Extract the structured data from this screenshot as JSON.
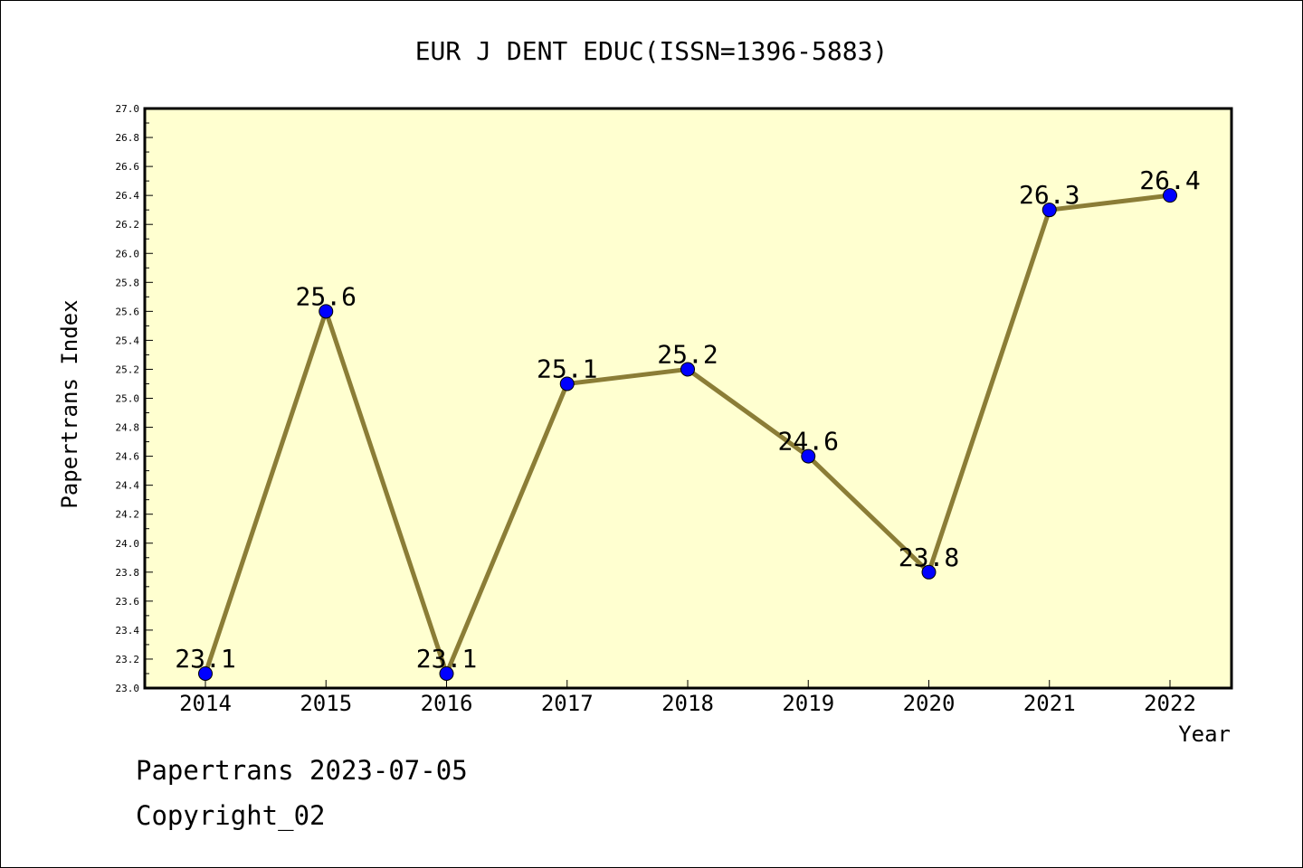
{
  "chart_data": {
    "type": "line",
    "title": "EUR J DENT EDUC(ISSN=1396-5883)",
    "xlabel": "Year",
    "ylabel": "Papertrans Index",
    "categories": [
      "2014",
      "2015",
      "2016",
      "2017",
      "2018",
      "2019",
      "2020",
      "2021",
      "2022"
    ],
    "series": [
      {
        "values": [
          23.1,
          25.6,
          23.1,
          25.1,
          25.2,
          24.6,
          23.8,
          26.3,
          26.4
        ],
        "labels": [
          "23.1",
          "25.6",
          "23.1",
          "25.1",
          "25.2",
          "24.6",
          "23.8",
          "26.3",
          "26.4"
        ]
      }
    ],
    "ylim": [
      23.0,
      27.0
    ],
    "yticks": [
      "23.0",
      "23.2",
      "23.4",
      "23.6",
      "23.8",
      "24.0",
      "24.2",
      "24.4",
      "24.6",
      "24.8",
      "25.0",
      "25.2",
      "25.4",
      "25.6",
      "25.8",
      "26.0",
      "26.2",
      "26.4",
      "26.6",
      "26.8",
      "27.0"
    ],
    "grid": false,
    "colors": {
      "plot_background": "#ffffd0",
      "line": "#8b7d36",
      "marker": "#0000ff"
    }
  },
  "footer": {
    "line1": "Papertrans 2023-07-05",
    "line2": "Copyright_02"
  }
}
